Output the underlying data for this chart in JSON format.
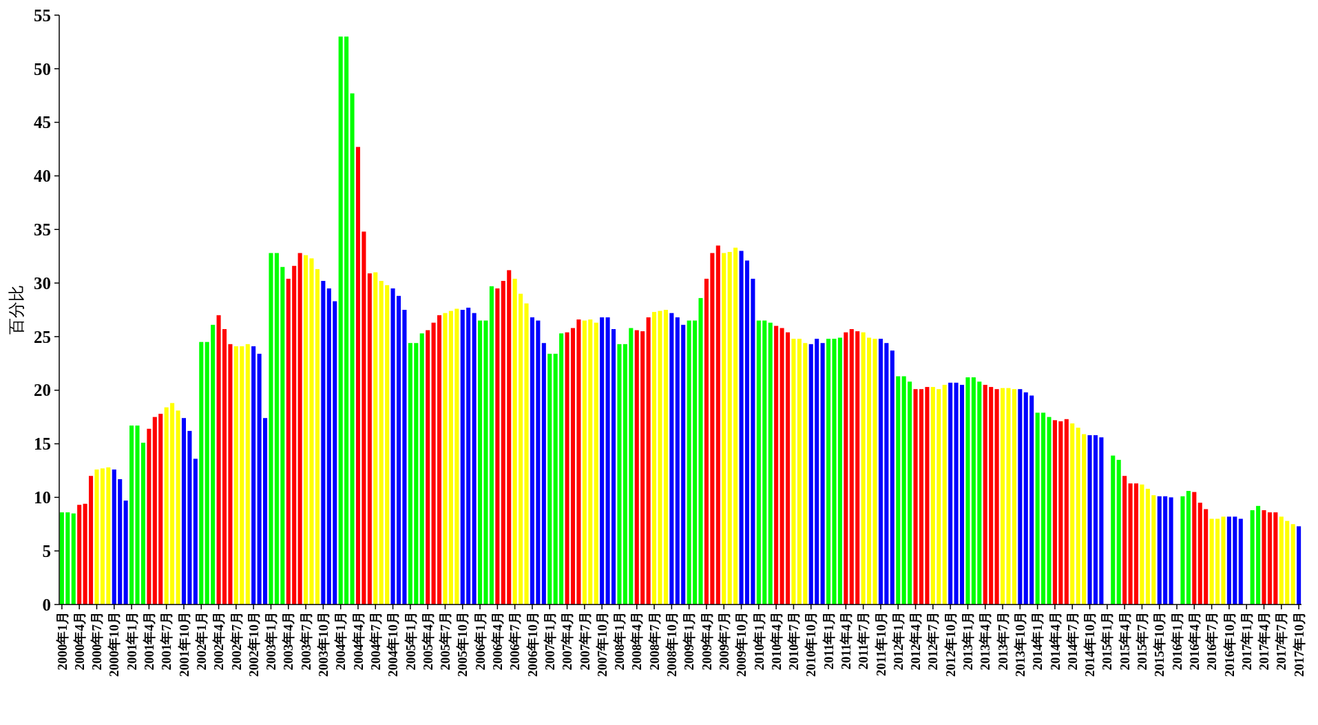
{
  "chart_data": {
    "type": "bar",
    "ylabel": "百分比",
    "categories": [
      "2000年1月",
      null,
      null,
      "2000年4月",
      null,
      null,
      "2000年7月",
      null,
      null,
      "2000年10月",
      null,
      null,
      "2001年1月",
      null,
      null,
      "2001年4月",
      null,
      null,
      "2001年7月",
      null,
      null,
      "2001年10月",
      null,
      null,
      "2002年1月",
      null,
      null,
      "2002年4月",
      null,
      null,
      "2002年7月",
      null,
      null,
      "2002年10月",
      null,
      null,
      "2003年1月",
      null,
      null,
      "2003年4月",
      null,
      null,
      "2003年7月",
      null,
      null,
      "2003年10月",
      null,
      null,
      "2004年1月",
      null,
      null,
      "2004年4月",
      null,
      null,
      "2004年7月",
      null,
      null,
      "2004年10月",
      null,
      null,
      "2005年1月",
      null,
      null,
      "2005年4月",
      null,
      null,
      "2005年7月",
      null,
      null,
      "2005年10月",
      null,
      null,
      "2006年1月",
      null,
      null,
      "2006年4月",
      null,
      null,
      "2006年7月",
      null,
      null,
      "2006年10月",
      null,
      null,
      "2007年1月",
      null,
      null,
      "2007年4月",
      null,
      null,
      "2007年7月",
      null,
      null,
      "2007年10月",
      null,
      null,
      "2008年1月",
      null,
      null,
      "2008年4月",
      null,
      null,
      "2008年7月",
      null,
      null,
      "2008年10月",
      null,
      null,
      "2009年1月",
      null,
      null,
      "2009年4月",
      null,
      null,
      "2009年7月",
      null,
      null,
      "2009年10月",
      null,
      null,
      "2010年1月",
      null,
      null,
      "2010年4月",
      null,
      null,
      "2010年7月",
      null,
      null,
      "2010年10月",
      null,
      null,
      "2011年1月",
      null,
      null,
      "2011年4月",
      null,
      null,
      "2011年7月",
      null,
      null,
      "2011年10月",
      null,
      null,
      "2012年1月",
      null,
      null,
      "2012年4月",
      null,
      null,
      "2012年7月",
      null,
      null,
      "2012年10月",
      null,
      null,
      "2013年1月",
      null,
      null,
      "2013年4月",
      null,
      null,
      "2013年7月",
      null,
      null,
      "2013年10月",
      null,
      null,
      "2014年1月",
      null,
      null,
      "2014年4月",
      null,
      null,
      "2014年7月",
      null,
      null,
      "2014年10月",
      null,
      null,
      "2015年1月",
      null,
      null,
      "2015年4月",
      null,
      null,
      "2015年7月",
      null,
      null,
      "2015年10月",
      null,
      null,
      "2016年1月",
      null,
      null,
      "2016年4月",
      null,
      null,
      "2016年7月",
      null,
      null,
      "2016年10月",
      null,
      null,
      "2017年1月",
      null,
      null,
      "2017年4月",
      null,
      null,
      "2017年7月",
      null,
      null,
      "2017年10月"
    ],
    "values": [
      8.6,
      8.6,
      8.5,
      9.3,
      9.4,
      12.0,
      12.6,
      12.7,
      12.8,
      12.6,
      11.7,
      9.7,
      16.7,
      16.7,
      15.1,
      16.4,
      17.5,
      17.8,
      18.4,
      18.8,
      18.1,
      17.4,
      16.2,
      13.6,
      24.5,
      24.5,
      26.1,
      27.0,
      25.7,
      24.3,
      24.1,
      24.1,
      24.3,
      24.1,
      23.4,
      17.4,
      32.8,
      32.8,
      31.5,
      30.4,
      31.6,
      32.8,
      32.6,
      32.3,
      31.3,
      30.2,
      29.5,
      28.3,
      53.0,
      53.0,
      47.7,
      42.7,
      34.8,
      30.9,
      31.0,
      30.2,
      29.8,
      29.5,
      28.8,
      27.5,
      24.4,
      24.4,
      25.3,
      25.6,
      26.3,
      27.0,
      27.2,
      27.4,
      27.6,
      27.5,
      27.7,
      27.2,
      26.5,
      26.5,
      29.7,
      29.5,
      30.2,
      31.2,
      30.4,
      29.0,
      28.1,
      26.8,
      26.5,
      24.4,
      23.4,
      23.4,
      25.3,
      25.4,
      25.8,
      26.6,
      26.5,
      26.6,
      26.3,
      26.8,
      26.8,
      25.7,
      24.3,
      24.3,
      25.8,
      25.6,
      25.5,
      26.8,
      27.3,
      27.4,
      27.5,
      27.2,
      26.8,
      26.1,
      26.5,
      26.5,
      28.6,
      30.4,
      32.8,
      33.5,
      32.8,
      32.9,
      33.3,
      33.0,
      32.1,
      30.4,
      26.5,
      26.5,
      26.3,
      26.0,
      25.8,
      25.4,
      24.8,
      24.8,
      24.4,
      24.3,
      24.8,
      24.4,
      24.8,
      24.8,
      24.9,
      25.4,
      25.7,
      25.5,
      25.4,
      24.9,
      24.8,
      24.8,
      24.4,
      23.7,
      21.3,
      21.3,
      20.8,
      20.1,
      20.1,
      20.3,
      20.3,
      20.1,
      20.5,
      20.7,
      20.7,
      20.5,
      21.2,
      21.2,
      20.8,
      20.5,
      20.3,
      20.1,
      20.2,
      20.2,
      20.1,
      20.1,
      19.8,
      19.5,
      17.9,
      17.9,
      17.5,
      17.2,
      17.1,
      17.3,
      16.9,
      16.5,
      15.9,
      15.8,
      15.8,
      15.6,
      null,
      13.9,
      13.5,
      12.0,
      11.3,
      11.3,
      11.2,
      10.8,
      10.2,
      10.1,
      10.1,
      10.0,
      null,
      10.1,
      10.6,
      10.5,
      9.5,
      8.9,
      8.0,
      8.0,
      8.2,
      8.2,
      8.2,
      8.0,
      null,
      8.8,
      9.2,
      8.8,
      8.6,
      8.6,
      8.2,
      7.8,
      7.5,
      7.3
    ],
    "colors": [
      "#00ff00",
      "#00ff00",
      "#00ff00",
      "#ff0000",
      "#ff0000",
      "#ff0000",
      "#ffff00",
      "#ffff00",
      "#ffff00",
      "#0000ff",
      "#0000ff",
      "#0000ff",
      "#00ff00",
      "#00ff00",
      "#00ff00",
      "#ff0000",
      "#ff0000",
      "#ff0000",
      "#ffff00",
      "#ffff00",
      "#ffff00",
      "#0000ff",
      "#0000ff",
      "#0000ff",
      "#00ff00",
      "#00ff00",
      "#00ff00",
      "#ff0000",
      "#ff0000",
      "#ff0000",
      "#ffff00",
      "#ffff00",
      "#ffff00",
      "#0000ff",
      "#0000ff",
      "#0000ff",
      "#00ff00",
      "#00ff00",
      "#00ff00",
      "#ff0000",
      "#ff0000",
      "#ff0000",
      "#ffff00",
      "#ffff00",
      "#ffff00",
      "#0000ff",
      "#0000ff",
      "#0000ff",
      "#00ff00",
      "#00ff00",
      "#00ff00",
      "#ff0000",
      "#ff0000",
      "#ff0000",
      "#ffff00",
      "#ffff00",
      "#ffff00",
      "#0000ff",
      "#0000ff",
      "#0000ff",
      "#00ff00",
      "#00ff00",
      "#00ff00",
      "#ff0000",
      "#ff0000",
      "#ff0000",
      "#ffff00",
      "#ffff00",
      "#ffff00",
      "#0000ff",
      "#0000ff",
      "#0000ff",
      "#00ff00",
      "#00ff00",
      "#00ff00",
      "#ff0000",
      "#ff0000",
      "#ff0000",
      "#ffff00",
      "#ffff00",
      "#ffff00",
      "#0000ff",
      "#0000ff",
      "#0000ff",
      "#00ff00",
      "#00ff00",
      "#00ff00",
      "#ff0000",
      "#ff0000",
      "#ff0000",
      "#ffff00",
      "#ffff00",
      "#ffff00",
      "#0000ff",
      "#0000ff",
      "#0000ff",
      "#00ff00",
      "#00ff00",
      "#00ff00",
      "#ff0000",
      "#ff0000",
      "#ff0000",
      "#ffff00",
      "#ffff00",
      "#ffff00",
      "#0000ff",
      "#0000ff",
      "#0000ff",
      "#00ff00",
      "#00ff00",
      "#00ff00",
      "#ff0000",
      "#ff0000",
      "#ff0000",
      "#ffff00",
      "#ffff00",
      "#ffff00",
      "#0000ff",
      "#0000ff",
      "#0000ff",
      "#00ff00",
      "#00ff00",
      "#00ff00",
      "#ff0000",
      "#ff0000",
      "#ff0000",
      "#ffff00",
      "#ffff00",
      "#ffff00",
      "#0000ff",
      "#0000ff",
      "#0000ff",
      "#00ff00",
      "#00ff00",
      "#00ff00",
      "#ff0000",
      "#ff0000",
      "#ff0000",
      "#ffff00",
      "#ffff00",
      "#ffff00",
      "#0000ff",
      "#0000ff",
      "#0000ff",
      "#00ff00",
      "#00ff00",
      "#00ff00",
      "#ff0000",
      "#ff0000",
      "#ff0000",
      "#ffff00",
      "#ffff00",
      "#ffff00",
      "#0000ff",
      "#0000ff",
      "#0000ff",
      "#00ff00",
      "#00ff00",
      "#00ff00",
      "#ff0000",
      "#ff0000",
      "#ff0000",
      "#ffff00",
      "#ffff00",
      "#ffff00",
      "#0000ff",
      "#0000ff",
      "#0000ff",
      "#00ff00",
      "#00ff00",
      "#00ff00",
      "#ff0000",
      "#ff0000",
      "#ff0000",
      "#ffff00",
      "#ffff00",
      "#ffff00",
      "#0000ff",
      "#0000ff",
      "#0000ff",
      null,
      "#00ff00",
      "#00ff00",
      "#ff0000",
      "#ff0000",
      "#ff0000",
      "#ffff00",
      "#ffff00",
      "#ffff00",
      "#0000ff",
      "#0000ff",
      "#0000ff",
      null,
      "#00ff00",
      "#00ff00",
      "#ff0000",
      "#ff0000",
      "#ff0000",
      "#ffff00",
      "#ffff00",
      "#ffff00",
      "#0000ff",
      "#0000ff",
      "#0000ff",
      null,
      "#00ff00",
      "#00ff00",
      "#ff0000",
      "#ff0000",
      "#ff0000",
      "#ffff00",
      "#ffff00",
      "#ffff00",
      "#0000ff"
    ],
    "ylim": [
      0,
      55
    ],
    "yticks": [
      0,
      5,
      10,
      15,
      20,
      25,
      30,
      35,
      40,
      45,
      50,
      55
    ],
    "grid": false
  }
}
